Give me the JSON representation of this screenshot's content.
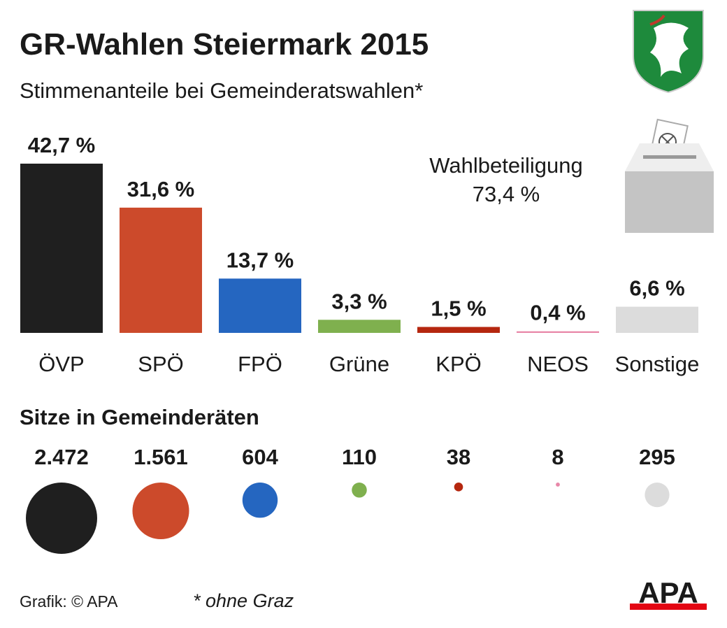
{
  "chart_data": [
    {
      "type": "bar",
      "title": "GR-Wahlen Steiermark 2015",
      "subtitle": "Stimmenanteile bei Gemeinderatswahlen*",
      "categories": [
        "ÖVP",
        "SPÖ",
        "FPÖ",
        "Grüne",
        "KPÖ",
        "NEOS",
        "Sonstige"
      ],
      "values": [
        42.7,
        31.6,
        13.7,
        3.3,
        1.5,
        0.4,
        6.6
      ],
      "value_labels": [
        "42,7 %",
        "31,6 %",
        "13,7 %",
        "3,3 %",
        "1,5 %",
        "0,4 %",
        "6,6 %"
      ],
      "colors": [
        "#1f1f1f",
        "#cc4a2b",
        "#2566c0",
        "#7fb04e",
        "#b5270f",
        "#e887a8",
        "#dcdcdc"
      ],
      "annotation": {
        "label": "Wahlbeteiligung",
        "value": 73.4,
        "value_label": "73,4 %"
      }
    },
    {
      "type": "bubble",
      "title": "Sitze in Gemeinderäten",
      "categories": [
        "ÖVP",
        "SPÖ",
        "FPÖ",
        "Grüne",
        "KPÖ",
        "NEOS",
        "Sonstige"
      ],
      "values": [
        2472,
        1561,
        604,
        110,
        38,
        8,
        295
      ],
      "value_labels": [
        "2.472",
        "1.561",
        "604",
        "110",
        "38",
        "8",
        "295"
      ],
      "colors": [
        "#1f1f1f",
        "#cc4a2b",
        "#2566c0",
        "#7fb04e",
        "#b5270f",
        "#e887a8",
        "#dcdcdc"
      ]
    }
  ],
  "footer": {
    "credit": "Grafik: © APA",
    "note": "* ohne Graz",
    "logo": "APA"
  }
}
